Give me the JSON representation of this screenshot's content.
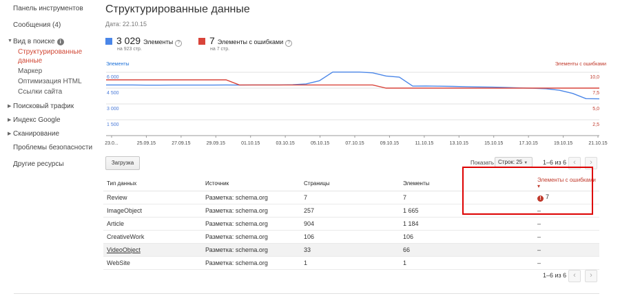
{
  "sidebar": {
    "items": [
      {
        "label": "Панель инструментов"
      },
      {
        "label": "Сообщения (4)"
      },
      {
        "label": "Вид в поиске"
      },
      {
        "label": "Структурированные данные"
      },
      {
        "label": "Маркер"
      },
      {
        "label": "Оптимизация HTML"
      },
      {
        "label": "Ссылки сайта"
      },
      {
        "label": "Поисковый трафик"
      },
      {
        "label": "Индекс Google"
      },
      {
        "label": "Сканирование"
      },
      {
        "label": "Проблемы безопасности"
      },
      {
        "label": "Другие ресурсы"
      }
    ],
    "info_icon": "i"
  },
  "header": {
    "title": "Структурированные данные",
    "date": "Дата: 22.10.15"
  },
  "summary": {
    "items": {
      "count": "3 029",
      "label": "Элементы",
      "sub": "на 923 стр.",
      "color": "#4a86e8"
    },
    "errors": {
      "count": "7",
      "label": "Элементы с ошибками",
      "sub": "на 7 стр.",
      "color": "#d9443a"
    },
    "help_icon": "?"
  },
  "chart_data": {
    "type": "line",
    "left_axis_title": "Элементы",
    "right_axis_title": "Элементы с ошибками",
    "left_ticks": [
      "6 000",
      "4 500",
      "3 000",
      "1 500"
    ],
    "right_ticks": [
      "10,0",
      "7,5",
      "5,0",
      "2,5"
    ],
    "left_ylim": [
      0,
      6000
    ],
    "right_ylim": [
      0,
      10
    ],
    "x_labels": [
      "23.0...",
      "25.09.15",
      "27.09.15",
      "29.09.15",
      "01.10.15",
      "03.10.15",
      "05.10.15",
      "07.10.15",
      "09.10.15",
      "11.10.15",
      "13.10.15",
      "15.10.15",
      "17.10.15",
      "19.10.15",
      "21.10.15"
    ],
    "series": [
      {
        "name": "Элементы",
        "color": "#4a86e8",
        "values": [
          4800,
          4800,
          4800,
          4780,
          4780,
          4790,
          4790,
          4790,
          4790,
          4800,
          4790,
          4800,
          4800,
          4800,
          4820,
          4900,
          5200,
          6020,
          6020,
          6020,
          5950,
          5650,
          5540,
          4690,
          4700,
          4680,
          4660,
          4640,
          4610,
          4590,
          4560,
          4520,
          4490,
          4440,
          4300,
          4000,
          3500,
          3480
        ]
      },
      {
        "name": "Элементы с ошибками",
        "color": "#d9443a",
        "values": [
          8.8,
          8.8,
          8.8,
          8.8,
          8.8,
          8.8,
          8.8,
          8.8,
          8.8,
          8.8,
          8.0,
          8.0,
          8.0,
          8.0,
          8.0,
          8.0,
          8.0,
          8.0,
          8.0,
          8.0,
          8.0,
          7.5,
          7.5,
          7.5,
          7.5,
          7.5,
          7.5,
          7.5,
          7.5,
          7.5,
          7.5,
          7.5,
          7.5,
          7.5,
          7.5,
          7.5,
          7.5,
          7.5
        ]
      }
    ]
  },
  "toolbar": {
    "download_label": "Загрузка",
    "show_label": "Показать",
    "rows_label": "Строк: 25",
    "pager_text": "1–6 из 6",
    "prev": "‹",
    "next": "›"
  },
  "table": {
    "headers": [
      "Тип данных",
      "Источник",
      "Страницы",
      "Элементы",
      "Элементы с ошибками"
    ],
    "sort_indicator": "▾",
    "error_icon": "!",
    "rows": [
      [
        "Review",
        "Разметка: schema.org",
        "7",
        "7",
        "7"
      ],
      [
        "ImageObject",
        "Разметка: schema.org",
        "257",
        "1 665",
        "–"
      ],
      [
        "Article",
        "Разметка: schema.org",
        "904",
        "1 184",
        "–"
      ],
      [
        "CreativeWork",
        "Разметка: schema.org",
        "106",
        "106",
        "–"
      ],
      [
        "VideoObject",
        "Разметка: schema.org",
        "33",
        "66",
        "–"
      ],
      [
        "WebSite",
        "Разметка: schema.org",
        "1",
        "1",
        "–"
      ]
    ]
  }
}
